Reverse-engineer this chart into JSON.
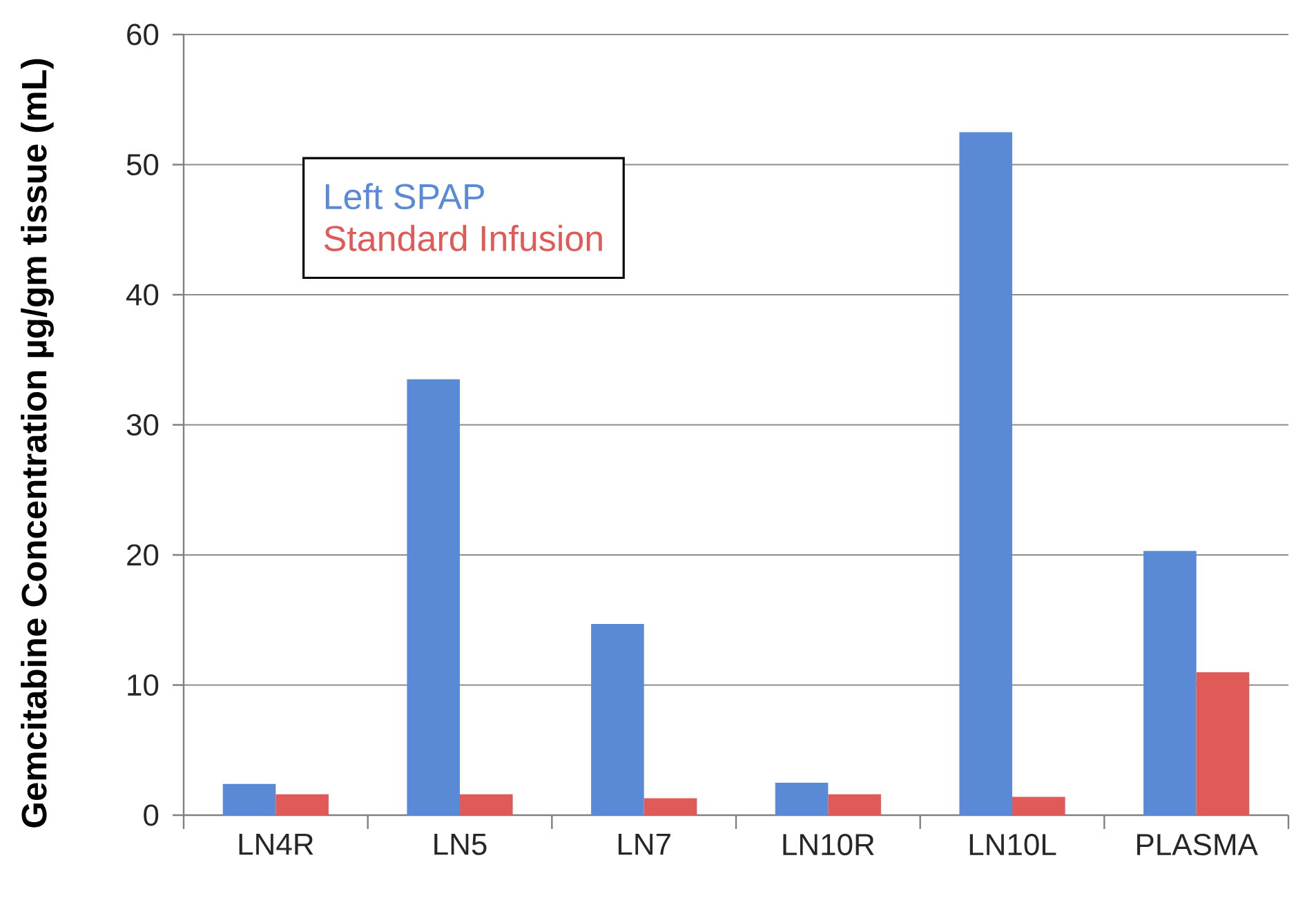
{
  "chart_data": {
    "type": "bar",
    "ylabel": "Gemcitabine Concentration µg/gm tissue (mL)",
    "categories": [
      "LN4R",
      "LN5",
      "LN7",
      "LN10R",
      "LN10L",
      "PLASMA"
    ],
    "series": [
      {
        "name": "Left SPAP",
        "color": "#5a8ad6",
        "values": [
          2.4,
          33.5,
          14.7,
          2.5,
          52.5,
          20.3
        ]
      },
      {
        "name": "Standard Infusion",
        "color": "#e05a57",
        "values": [
          1.6,
          1.6,
          1.3,
          1.6,
          1.4,
          11.0
        ]
      }
    ],
    "ylim": [
      0,
      60
    ],
    "yticks": [
      0,
      10,
      20,
      30,
      40,
      50,
      60
    ],
    "grid": "y",
    "legend": "top left"
  }
}
